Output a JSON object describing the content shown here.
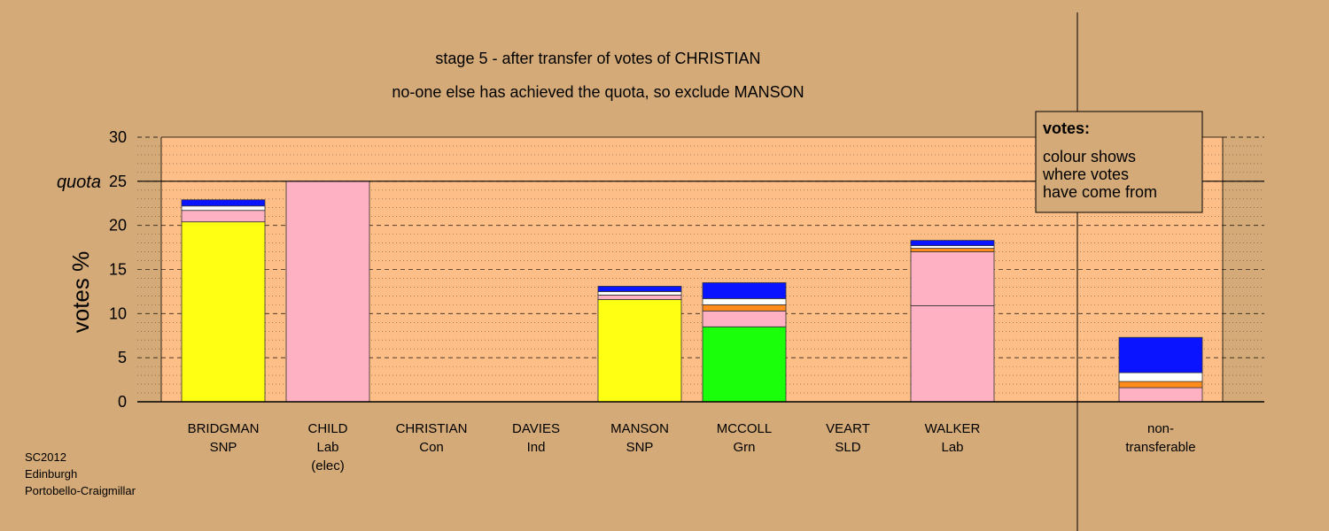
{
  "footer": {
    "line1": "SC2012",
    "line2": "Edinburgh",
    "line3": "Portobello-Craigmillar"
  },
  "legend": {
    "title": "votes:",
    "lines": [
      "colour shows",
      "where votes",
      "have come from"
    ]
  },
  "chart_data": {
    "type": "bar",
    "stacked": true,
    "title": "stage 5 - after transfer of votes of CHRISTIAN",
    "subtitle": "no-one else has achieved the quota, so exclude MANSON",
    "ylabel": "votes %",
    "ylim": [
      0,
      30
    ],
    "yticks": [
      "0",
      "5",
      "10",
      "15",
      "20",
      "25",
      "30"
    ],
    "quota": 25,
    "quota_label": "quota",
    "colors": {
      "yellow": "#ffff14",
      "pink": "#ffb1c4",
      "green": "#1aff0a",
      "orange": "#ff8c1a",
      "white": "#ffffff",
      "blue": "#0a14ff",
      "background": "#d4aa78",
      "plot": "#fdbf87"
    },
    "categories": [
      {
        "name": "BRIDGMAN",
        "party": "SNP",
        "extra": "",
        "segments": [
          {
            "color": "yellow",
            "value": 20.4
          },
          {
            "color": "pink",
            "value": 1.3
          },
          {
            "color": "white",
            "value": 0.5
          },
          {
            "color": "blue",
            "value": 0.7
          }
        ]
      },
      {
        "name": "CHILD",
        "party": "Lab",
        "extra": "(elec)",
        "segments": [
          {
            "color": "pink",
            "value": 25.0
          }
        ]
      },
      {
        "name": "CHRISTIAN",
        "party": "Con",
        "extra": "",
        "segments": []
      },
      {
        "name": "DAVIES",
        "party": "Ind",
        "extra": "",
        "segments": []
      },
      {
        "name": "MANSON",
        "party": "SNP",
        "extra": "",
        "segments": [
          {
            "color": "yellow",
            "value": 11.6
          },
          {
            "color": "pink",
            "value": 0.5
          },
          {
            "color": "white",
            "value": 0.4
          },
          {
            "color": "blue",
            "value": 0.6
          }
        ]
      },
      {
        "name": "MCCOLL",
        "party": "Grn",
        "extra": "",
        "segments": [
          {
            "color": "green",
            "value": 8.5
          },
          {
            "color": "pink",
            "value": 1.8
          },
          {
            "color": "orange",
            "value": 0.7
          },
          {
            "color": "white",
            "value": 0.7
          },
          {
            "color": "blue",
            "value": 1.8
          }
        ]
      },
      {
        "name": "VEART",
        "party": "SLD",
        "extra": "",
        "segments": []
      },
      {
        "name": "WALKER",
        "party": "Lab",
        "extra": "",
        "segments": [
          {
            "color": "pink",
            "value": 10.9
          },
          {
            "color": "pink",
            "value": 6.1
          },
          {
            "color": "orange",
            "value": 0.4
          },
          {
            "color": "white",
            "value": 0.3
          },
          {
            "color": "blue",
            "value": 0.6
          }
        ]
      },
      {
        "name": "non-",
        "party": "transferable",
        "extra": "",
        "segments": [
          {
            "color": "pink",
            "value": 1.6
          },
          {
            "color": "orange",
            "value": 0.7
          },
          {
            "color": "white",
            "value": 1.0
          },
          {
            "color": "blue",
            "value": 4.0
          }
        ]
      }
    ]
  }
}
